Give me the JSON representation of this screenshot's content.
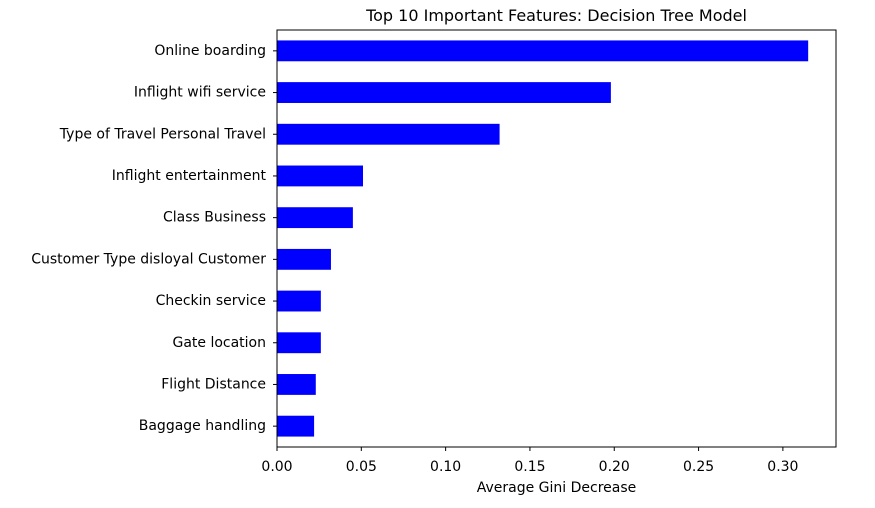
{
  "chart_data": {
    "type": "bar",
    "orientation": "horizontal",
    "title": "Top 10 Important Features: Decision Tree Model",
    "xlabel": "Average Gini Decrease",
    "ylabel": "",
    "xlim": [
      0.0,
      0.3315
    ],
    "xticks": [
      0.0,
      0.05,
      0.1,
      0.15,
      0.2,
      0.25,
      0.3
    ],
    "xtick_labels": [
      "0.00",
      "0.05",
      "0.10",
      "0.15",
      "0.20",
      "0.25",
      "0.30"
    ],
    "categories": [
      "Online boarding",
      "Inflight wifi service",
      "Type of Travel Personal Travel",
      "Inflight entertainment",
      "Class Business",
      "Customer Type disloyal Customer",
      "Checkin service",
      "Gate location",
      "Flight Distance",
      "Baggage handling"
    ],
    "values": [
      0.315,
      0.198,
      0.132,
      0.051,
      0.045,
      0.032,
      0.026,
      0.026,
      0.023,
      0.022
    ],
    "bar_color": "#0000ff",
    "grid": false,
    "legend": "none"
  }
}
